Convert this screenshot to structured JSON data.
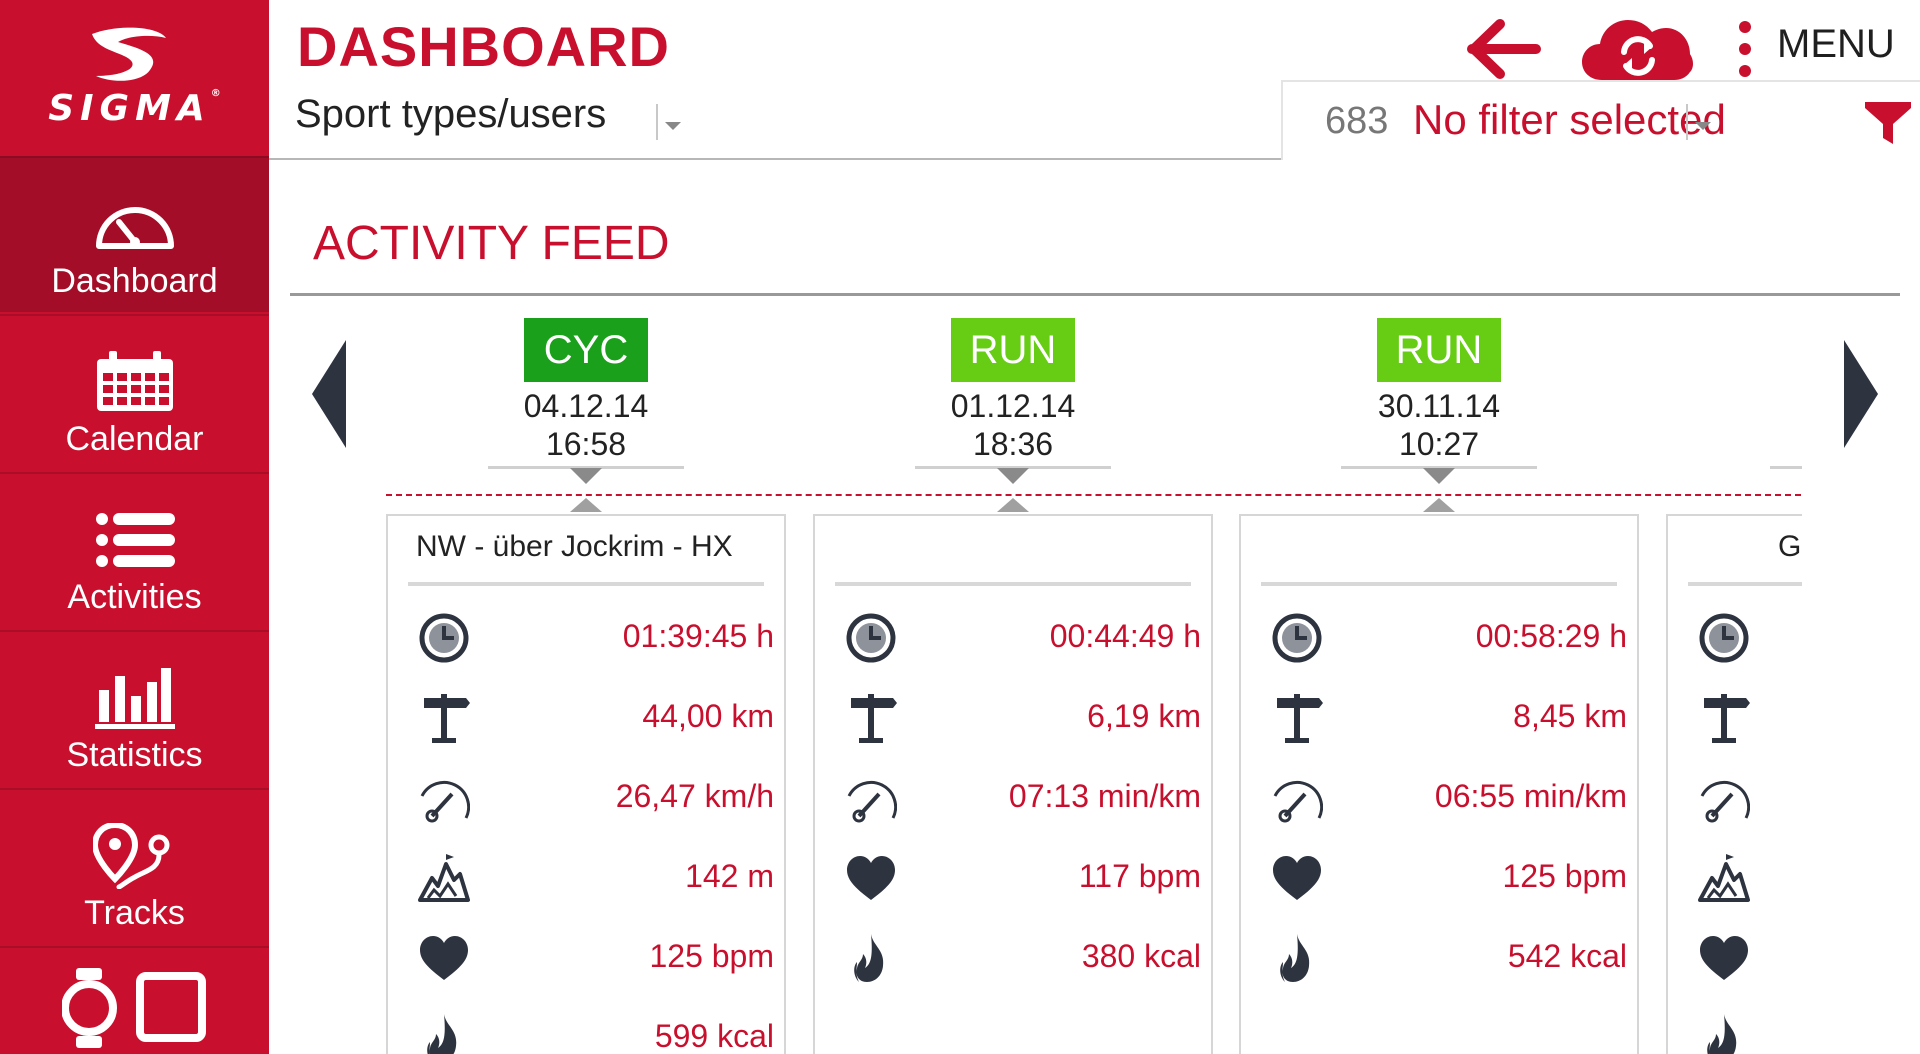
{
  "sidebar": {
    "brand": "SIGMA",
    "brand_mark": "®",
    "items": [
      {
        "label": "Dashboard",
        "icon": "speedometer-icon",
        "active": true
      },
      {
        "label": "Calendar",
        "icon": "calendar-icon"
      },
      {
        "label": "Activities",
        "icon": "list-icon"
      },
      {
        "label": "Statistics",
        "icon": "bar-chart-icon"
      },
      {
        "label": "Tracks",
        "icon": "map-pin-track-icon"
      },
      {
        "label": "",
        "icon": "watch-device-icon"
      }
    ]
  },
  "header": {
    "title": "DASHBOARD",
    "sport_select": "Sport types/users",
    "menu_label": "MENU",
    "filter_count": "683",
    "filter_text": "No filter selected"
  },
  "feed": {
    "title": "ACTIVITY FEED",
    "items": [
      {
        "type": "CYC",
        "date": "04.12.14",
        "time": "16:58",
        "title": "NW  - über Jockrim - HX",
        "metrics": [
          {
            "icon": "clock-icon",
            "value": "01:39:45 h"
          },
          {
            "icon": "signpost-icon",
            "value": "44,00 km"
          },
          {
            "icon": "gauge-icon",
            "value": "26,47 km/h"
          },
          {
            "icon": "mountain-icon",
            "value": "142 m"
          },
          {
            "icon": "heart-icon",
            "value": "125 bpm"
          },
          {
            "icon": "flame-icon",
            "value": "599 kcal"
          }
        ]
      },
      {
        "type": "RUN",
        "date": "01.12.14",
        "time": "18:36",
        "title": "",
        "metrics": [
          {
            "icon": "clock-icon",
            "value": "00:44:49 h"
          },
          {
            "icon": "signpost-icon",
            "value": "6,19 km"
          },
          {
            "icon": "gauge-icon",
            "value": "07:13 min/km"
          },
          {
            "icon": "heart-icon",
            "value": "117 bpm"
          },
          {
            "icon": "flame-icon",
            "value": "380 kcal"
          }
        ]
      },
      {
        "type": "RUN",
        "date": "30.11.14",
        "time": "10:27",
        "title": "",
        "metrics": [
          {
            "icon": "clock-icon",
            "value": "00:58:29 h"
          },
          {
            "icon": "signpost-icon",
            "value": "8,45 km"
          },
          {
            "icon": "gauge-icon",
            "value": "06:55 min/km"
          },
          {
            "icon": "heart-icon",
            "value": "125 bpm"
          },
          {
            "icon": "flame-icon",
            "value": "542 kcal"
          }
        ]
      }
    ],
    "partial_title": "G"
  },
  "colors": {
    "brand_red": "#c8102e",
    "cyc_green": "#1ba01b",
    "run_green": "#66cc14",
    "icon_dark": "#2d3440"
  }
}
